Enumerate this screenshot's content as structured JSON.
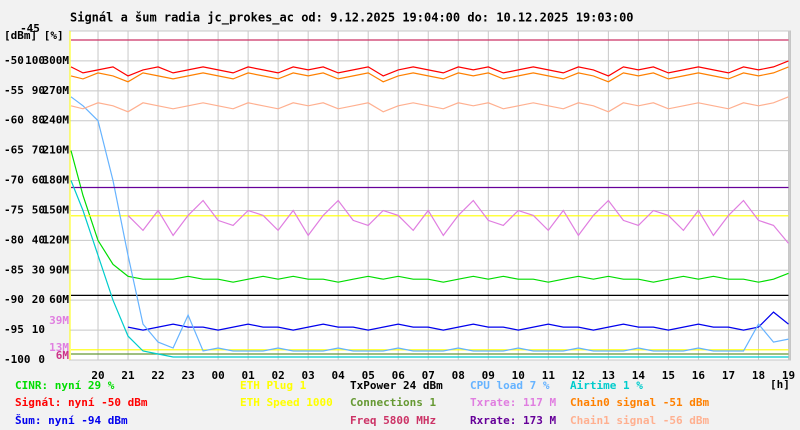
{
  "chart_data": {
    "type": "line",
    "title": "Signál a šum radia jc_prokes_ac od: 9.12.2025 19:04:00 do: 10.12.2025 19:03:00",
    "y_label": "[dBm] [%]",
    "x_label": "[h]",
    "grid": true,
    "xlim": [
      19.0667,
      43.05
    ],
    "xticks": [
      20,
      21,
      22,
      23,
      {
        "value": 24,
        "label": "00"
      },
      {
        "value": 25,
        "label": "01"
      },
      {
        "value": 26,
        "label": "02"
      },
      {
        "value": 27,
        "label": "03"
      },
      {
        "value": 28,
        "label": "04"
      },
      {
        "value": 29,
        "label": "05"
      },
      {
        "value": 30,
        "label": "06"
      },
      {
        "value": 31,
        "label": "07"
      },
      {
        "value": 32,
        "label": "08"
      },
      {
        "value": 33,
        "label": "09"
      },
      {
        "value": 34,
        "label": "10"
      },
      {
        "value": 35,
        "label": "11"
      },
      {
        "value": 36,
        "label": "12"
      },
      {
        "value": 37,
        "label": "13"
      },
      {
        "value": 38,
        "label": "14"
      },
      {
        "value": 39,
        "label": "15"
      },
      {
        "value": 40,
        "label": "16"
      },
      {
        "value": 41,
        "label": "17"
      },
      {
        "value": 42,
        "label": "18"
      },
      {
        "value": 43,
        "label": "19"
      }
    ],
    "ylim": [
      -100,
      -45
    ],
    "yticks": [
      -45,
      -50,
      -55,
      -60,
      -65,
      -70,
      -75,
      -80,
      -85,
      -90,
      -95,
      -100
    ],
    "y2lim": [
      0,
      110
    ],
    "y2ticks": [
      100,
      90,
      80,
      70,
      60,
      50,
      40,
      30,
      20,
      10,
      0
    ],
    "y3lim": [
      0,
      330
    ],
    "y3ticks": [
      {
        "value": 300,
        "label": "300M"
      },
      {
        "value": 270,
        "label": "270M"
      },
      {
        "value": 240,
        "label": "240M"
      },
      {
        "value": 210,
        "label": "210M"
      },
      {
        "value": 180,
        "label": "180M"
      },
      {
        "value": 150,
        "label": "150M"
      },
      {
        "value": 120,
        "label": "120M"
      },
      {
        "value": 90,
        "label": "90M"
      },
      {
        "value": 60,
        "label": "60M"
      }
    ],
    "annotations": [
      {
        "text": "39M",
        "color": "#e07ee0"
      },
      {
        "text": "13M",
        "color": "#e07ee0"
      },
      {
        "text": "6M",
        "color": "#cc3388"
      }
    ],
    "x": [
      19.1,
      19.5,
      20,
      20.5,
      21,
      21.5,
      22,
      22.5,
      23,
      23.5,
      24,
      24.5,
      25,
      25.5,
      26,
      26.5,
      27,
      27.5,
      28,
      28.5,
      29,
      29.5,
      30,
      30.5,
      31,
      31.5,
      32,
      32.5,
      33,
      33.5,
      34,
      34.5,
      35,
      35.5,
      36,
      36.5,
      37,
      37.5,
      38,
      38.5,
      39,
      39.5,
      40,
      40.5,
      41,
      41.5,
      42,
      42.5,
      43
    ],
    "series": [
      {
        "name": "CINR: nyní 29 %",
        "color": "#00dd00",
        "axis": "y2",
        "values": [
          70,
          55,
          40,
          32,
          28,
          27,
          27,
          27,
          28,
          27,
          27,
          26,
          27,
          28,
          27,
          28,
          27,
          27,
          26,
          27,
          28,
          27,
          28,
          27,
          27,
          26,
          27,
          28,
          27,
          28,
          27,
          27,
          26,
          27,
          28,
          27,
          28,
          27,
          27,
          26,
          27,
          28,
          27,
          28,
          27,
          27,
          26,
          27,
          29
        ]
      },
      {
        "name": "Signál: nyní -50 dBm",
        "color": "#ff0000",
        "axis": "y",
        "values": [
          -51,
          -52,
          -51.5,
          -51,
          -52.5,
          -51.5,
          -51,
          -52,
          -51.5,
          -51,
          -51.5,
          -52,
          -51,
          -51.5,
          -52,
          -51,
          -51.5,
          -51,
          -52,
          -51.5,
          -51,
          -52.5,
          -51.5,
          -51,
          -51.5,
          -52,
          -51,
          -51.5,
          -51,
          -52,
          -51.5,
          -51,
          -51.5,
          -52,
          -51,
          -51.5,
          -52.5,
          -51,
          -51.5,
          -51,
          -52,
          -51.5,
          -51,
          -51.5,
          -52,
          -51,
          -51.5,
          -51,
          -50
        ]
      },
      {
        "name": "Šum: nyní -94 dBm",
        "color": "#0000ee",
        "axis": "y",
        "values": [
          null,
          null,
          null,
          null,
          -94.5,
          -95,
          -94.5,
          -94,
          -94.5,
          -94.5,
          -95,
          -94.5,
          -94,
          -94.5,
          -94.5,
          -95,
          -94.5,
          -94,
          -94.5,
          -94.5,
          -95,
          -94.5,
          -94,
          -94.5,
          -94.5,
          -95,
          -94.5,
          -94,
          -94.5,
          -94.5,
          -95,
          -94.5,
          -94,
          -94.5,
          -94.5,
          -95,
          -94.5,
          -94,
          -94.5,
          -94.5,
          -95,
          -94.5,
          -94,
          -94.5,
          -94.5,
          -95,
          -94.5,
          -92,
          -94
        ]
      },
      {
        "name": "ETH Plug 1",
        "color": "#ffff00",
        "axis": "y",
        "values": [
          -98.3,
          -98.3,
          -98.3,
          -98.3,
          -98.3,
          -98.3,
          -98.3,
          -98.3,
          -98.3,
          -98.3,
          -98.3,
          -98.3,
          -98.3,
          -98.3,
          -98.3,
          -98.3,
          -98.3,
          -98.3,
          -98.3,
          -98.3,
          -98.3,
          -98.3,
          -98.3,
          -98.3,
          -98.3,
          -98.3,
          -98.3,
          -98.3,
          -98.3,
          -98.3,
          -98.3,
          -98.3,
          -98.3,
          -98.3,
          -98.3,
          -98.3,
          -98.3,
          -98.3,
          -98.3,
          -98.3,
          -98.3,
          -98.3,
          -98.3,
          -98.3,
          -98.3,
          -98.3,
          -98.3,
          -98.3,
          -98.3
        ]
      },
      {
        "name": "ETH Speed 1000",
        "color": "#ffff00",
        "axis": "y",
        "values": [
          -75.9,
          -75.9,
          -75.9,
          -75.9,
          -75.9,
          -75.9,
          -75.9,
          -75.9,
          -75.9,
          -75.9,
          -75.9,
          -75.9,
          -75.9,
          -75.9,
          -75.9,
          -75.9,
          -75.9,
          -75.9,
          -75.9,
          -75.9,
          -75.9,
          -75.9,
          -75.9,
          -75.9,
          -75.9,
          -75.9,
          -75.9,
          -75.9,
          -75.9,
          -75.9,
          -75.9,
          -75.9,
          -75.9,
          -75.9,
          -75.9,
          -75.9,
          -75.9,
          -75.9,
          -75.9,
          -75.9,
          -75.9,
          -75.9,
          -75.9,
          -75.9,
          -75.9,
          -75.9,
          -75.9,
          -75.9,
          -75.9
        ]
      },
      {
        "name": "TxPower 24 dBm",
        "color": "#000000",
        "axis": "y",
        "values": [
          -89.2,
          -89.2,
          -89.2,
          -89.2,
          -89.2,
          -89.2,
          -89.2,
          -89.2,
          -89.2,
          -89.2,
          -89.2,
          -89.2,
          -89.2,
          -89.2,
          -89.2,
          -89.2,
          -89.2,
          -89.2,
          -89.2,
          -89.2,
          -89.2,
          -89.2,
          -89.2,
          -89.2,
          -89.2,
          -89.2,
          -89.2,
          -89.2,
          -89.2,
          -89.2,
          -89.2,
          -89.2,
          -89.2,
          -89.2,
          -89.2,
          -89.2,
          -89.2,
          -89.2,
          -89.2,
          -89.2,
          -89.2,
          -89.2,
          -89.2,
          -89.2,
          -89.2,
          -89.2,
          -89.2,
          -89.2,
          -89.2
        ]
      },
      {
        "name": "Connections 1",
        "color": "#669933",
        "axis": "y",
        "values": [
          -99,
          -99,
          -99,
          -99,
          -99,
          -99,
          -99,
          -99,
          -99,
          -99,
          -99,
          -99,
          -99,
          -99,
          -99,
          -99,
          -99,
          -99,
          -99,
          -99,
          -99,
          -99,
          -99,
          -99,
          -99,
          -99,
          -99,
          -99,
          -99,
          -99,
          -99,
          -99,
          -99,
          -99,
          -99,
          -99,
          -99,
          -99,
          -99,
          -99,
          -99,
          -99,
          -99,
          -99,
          -99,
          -99,
          -99,
          -99,
          -99
        ]
      },
      {
        "name": "Freq 5800 MHz",
        "color": "#cc3366",
        "axis": "y",
        "values": [
          -46.5,
          -46.5,
          -46.5,
          -46.5,
          -46.5,
          -46.5,
          -46.5,
          -46.5,
          -46.5,
          -46.5,
          -46.5,
          -46.5,
          -46.5,
          -46.5,
          -46.5,
          -46.5,
          -46.5,
          -46.5,
          -46.5,
          -46.5,
          -46.5,
          -46.5,
          -46.5,
          -46.5,
          -46.5,
          -46.5,
          -46.5,
          -46.5,
          -46.5,
          -46.5,
          -46.5,
          -46.5,
          -46.5,
          -46.5,
          -46.5,
          -46.5,
          -46.5,
          -46.5,
          -46.5,
          -46.5,
          -46.5,
          -46.5,
          -46.5,
          -46.5,
          -46.5,
          -46.5,
          -46.5,
          -46.5,
          -46.5
        ]
      },
      {
        "name": "CPU load 7 %",
        "color": "#66b3ff",
        "axis": "y2",
        "values": [
          88,
          85,
          80,
          60,
          35,
          12,
          6,
          4,
          15,
          3,
          4,
          3,
          3,
          3,
          4,
          3,
          3,
          3,
          4,
          3,
          3,
          3,
          4,
          3,
          3,
          3,
          4,
          3,
          3,
          3,
          4,
          3,
          3,
          3,
          4,
          3,
          3,
          3,
          4,
          3,
          3,
          3,
          4,
          3,
          3,
          3,
          12,
          6,
          7
        ]
      },
      {
        "name": "Txrate: 117 M",
        "color": "#e07ee0",
        "axis": "y3",
        "values": [
          null,
          null,
          null,
          null,
          145,
          130,
          150,
          125,
          145,
          160,
          140,
          135,
          150,
          145,
          130,
          150,
          125,
          145,
          160,
          140,
          135,
          150,
          145,
          130,
          150,
          125,
          145,
          160,
          140,
          135,
          150,
          145,
          130,
          150,
          125,
          145,
          160,
          140,
          135,
          150,
          145,
          130,
          150,
          125,
          145,
          160,
          140,
          135,
          117
        ]
      },
      {
        "name": "Rxrate: 173 M",
        "color": "#660099",
        "axis": "y3",
        "values": [
          173,
          173,
          173,
          173,
          173,
          173,
          173,
          173,
          173,
          173,
          173,
          173,
          173,
          173,
          173,
          173,
          173,
          173,
          173,
          173,
          173,
          173,
          173,
          173,
          173,
          173,
          173,
          173,
          173,
          173,
          173,
          173,
          173,
          173,
          173,
          173,
          173,
          173,
          173,
          173,
          173,
          173,
          173,
          173,
          173,
          173,
          173,
          173,
          173
        ]
      },
      {
        "name": "Airtime 1 %",
        "color": "#00cccc",
        "axis": "y2",
        "values": [
          60,
          50,
          35,
          20,
          8,
          3,
          2,
          1,
          1,
          1,
          1,
          1,
          1,
          1,
          1,
          1,
          1,
          1,
          1,
          1,
          1,
          1,
          1,
          1,
          1,
          1,
          1,
          1,
          1,
          1,
          1,
          1,
          1,
          1,
          1,
          1,
          1,
          1,
          1,
          1,
          1,
          1,
          1,
          1,
          1,
          1,
          1,
          1,
          1
        ]
      },
      {
        "name": "Chain0 signal -51 dBm",
        "color": "#ff8000",
        "axis": "y",
        "values": [
          -52.5,
          -53,
          -52,
          -52.5,
          -53.5,
          -52,
          -52.5,
          -53,
          -52.5,
          -52,
          -52.5,
          -53,
          -52,
          -52.5,
          -53,
          -52,
          -52.5,
          -52,
          -53,
          -52.5,
          -52,
          -53.5,
          -52.5,
          -52,
          -52.5,
          -53,
          -52,
          -52.5,
          -52,
          -53,
          -52.5,
          -52,
          -52.5,
          -53,
          -52,
          -52.5,
          -53.5,
          -52,
          -52.5,
          -52,
          -53,
          -52.5,
          -52,
          -52.5,
          -53,
          -52,
          -52.5,
          -52,
          -51
        ]
      },
      {
        "name": "Chain1 signal -56 dBm",
        "color": "#ffb090",
        "axis": "y",
        "values": [
          -57.5,
          -58,
          -57,
          -57.5,
          -58.5,
          -57,
          -57.5,
          -58,
          -57.5,
          -57,
          -57.5,
          -58,
          -57,
          -57.5,
          -58,
          -57,
          -57.5,
          -57,
          -58,
          -57.5,
          -57,
          -58.5,
          -57.5,
          -57,
          -57.5,
          -58,
          -57,
          -57.5,
          -57,
          -58,
          -57.5,
          -57,
          -57.5,
          -58,
          -57,
          -57.5,
          -58.5,
          -57,
          -57.5,
          -57,
          -58,
          -57.5,
          -57,
          -57.5,
          -58,
          -57,
          -57.5,
          -57,
          -56
        ]
      }
    ]
  }
}
